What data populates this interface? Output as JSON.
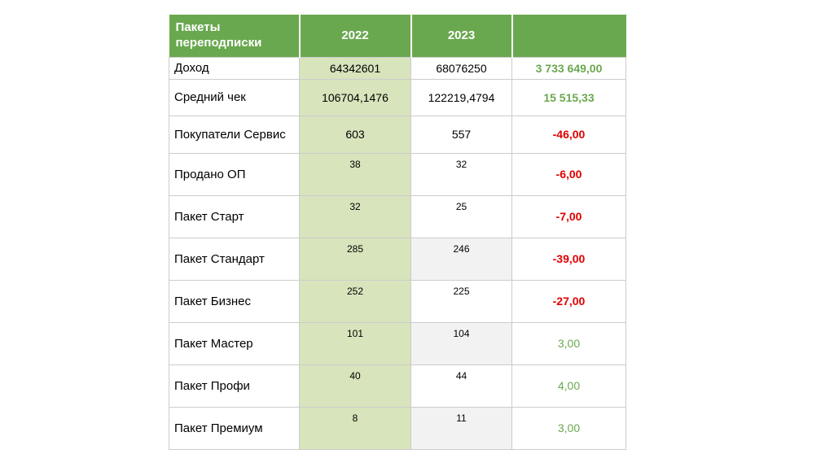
{
  "chart_data": {
    "type": "table",
    "title": "Пакеты переподписки",
    "columns": [
      "Пакеты переподписки",
      "2022",
      "2023",
      ""
    ],
    "rows": [
      {
        "label": "Доход",
        "v2022": "64342601",
        "v2023": "68076250",
        "diff": "3 733 649,00",
        "trend": "up",
        "strong": true
      },
      {
        "label": "Средний чек",
        "v2022": "106704,1476",
        "v2023": "122219,4794",
        "diff": "15 515,33",
        "trend": "up",
        "strong": true
      },
      {
        "label": "Покупатели Сервис",
        "v2022": "603",
        "v2023": "557",
        "diff": "-46,00",
        "trend": "down",
        "strong": true
      },
      {
        "label": "Продано ОП",
        "v2022": "38",
        "v2023": "32",
        "diff": "-6,00",
        "trend": "down",
        "strong": true
      },
      {
        "label": "Пакет Старт",
        "v2022": "32",
        "v2023": "25",
        "diff": "-7,00",
        "trend": "down",
        "strong": true
      },
      {
        "label": "Пакет Стандарт",
        "v2022": "285",
        "v2023": "246",
        "diff": "-39,00",
        "trend": "down",
        "strong": true
      },
      {
        "label": "Пакет Бизнес",
        "v2022": "252",
        "v2023": "225",
        "diff": "-27,00",
        "trend": "down",
        "strong": true
      },
      {
        "label": "Пакет Мастер",
        "v2022": "101",
        "v2023": "104",
        "diff": "3,00",
        "trend": "up",
        "strong": false
      },
      {
        "label": "Пакет Профи",
        "v2022": "40",
        "v2023": "44",
        "diff": "4,00",
        "trend": "up",
        "strong": false
      },
      {
        "label": "Пакет Премиум",
        "v2022": "8",
        "v2023": "11",
        "diff": "3,00",
        "trend": "up",
        "strong": false
      }
    ],
    "colors": {
      "header_bg": "#6aa84f",
      "header_text": "#ffffff",
      "col_2022_bg": "#d8e4bc",
      "row_band_bg": "#f2f2f2",
      "positive": "#6aa84f",
      "negative": "#e00000",
      "border": "#cccccc"
    }
  }
}
